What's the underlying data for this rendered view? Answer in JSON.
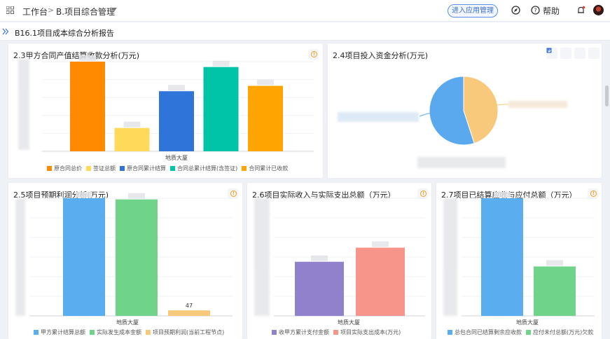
{
  "topbar": {
    "workbench_label": "工作台",
    "project_label": "B.项目综合管理",
    "enter_app_label": "进入应用管理",
    "help_label": "帮助"
  },
  "subbar": {
    "report_title": "B16.1项目成本综合分析报告"
  },
  "panels": {
    "p23": {
      "title": "2.3甲方合同产值结算收款分析(万元)"
    },
    "p24": {
      "title": "2.4项目投入资金分析(万元)"
    },
    "p25": {
      "title": "2.5项目预期利润分析(万元)"
    },
    "p26": {
      "title": "2.6项目实际收入与实际支出总额（万元）"
    },
    "p27": {
      "title": "2.7项目已结算应收与应付总额（万元）"
    }
  },
  "chart_data": [
    {
      "id": "c23",
      "type": "bar",
      "categories": [
        "地质大厦"
      ],
      "series": [
        {
          "name": "原合同总价",
          "values": [
            100
          ],
          "color": "#ff8a00"
        },
        {
          "name": "签证总额",
          "values": [
            26
          ],
          "color": "#ffd95a"
        },
        {
          "name": "原合同累计结算",
          "values": [
            67
          ],
          "color": "#2f74d8"
        },
        {
          "name": "合同总累计结算(含签证)",
          "values": [
            94
          ],
          "color": "#00c4a8"
        },
        {
          "name": "合同累计已收款",
          "values": [
            73
          ],
          "color": "#ffa400"
        }
      ]
    },
    {
      "id": "c24",
      "type": "pie",
      "slices": [
        {
          "value": 55,
          "color": "#5aa9ee"
        },
        {
          "value": 45,
          "color": "#f8c97a"
        }
      ]
    },
    {
      "id": "c25",
      "type": "bar",
      "categories": [
        "地质大厦"
      ],
      "series": [
        {
          "name": "甲方累计结算总额",
          "values": [
            1000
          ],
          "color": "#5aaeef"
        },
        {
          "name": "实际发生成本金额",
          "values": [
            990
          ],
          "color": "#6fd48a"
        },
        {
          "name": "项目预期利润(当前工程节点)",
          "values": [
            47
          ],
          "color": "#f8c97a",
          "label": "47"
        }
      ]
    },
    {
      "id": "c26",
      "type": "bar",
      "categories": [
        "地质大厦"
      ],
      "series": [
        {
          "name": "收甲方累计支付金额",
          "values": [
            46
          ],
          "color": "#9181cc"
        },
        {
          "name": "项目实际支出成本(万元)",
          "values": [
            58
          ],
          "color": "#f7958a"
        }
      ]
    },
    {
      "id": "c27",
      "type": "bar",
      "categories": [
        "地质大厦"
      ],
      "series": [
        {
          "name": "总包合同已结算剩余应收款",
          "values": [
            100
          ],
          "color": "#5aaeef"
        },
        {
          "name": "应付未付总额(万元)欠款",
          "values": [
            42
          ],
          "color": "#6fd48a"
        }
      ]
    }
  ]
}
